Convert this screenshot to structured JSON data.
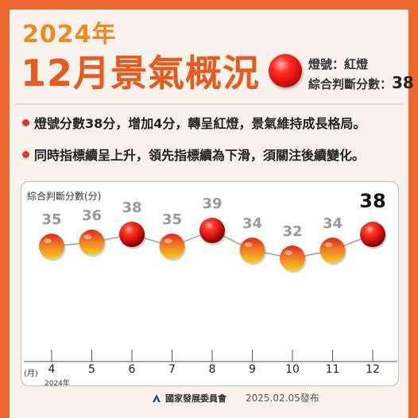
{
  "header": {
    "year": "2024年",
    "headline": "12月景氣概況",
    "signal_label": "燈號：紅燈",
    "score_label": "綜合判斷分數：",
    "score_value": "38"
  },
  "bullets": [
    "燈號分數38分，增加4分，轉呈紅燈，景氣維持成長格局。",
    "同時指標續呈上升，領先指標續為下滑，須關注後續變化。"
  ],
  "footer": {
    "org": "國家發展委員會",
    "date": "2025.02.05發布"
  },
  "colors": {
    "orange": "#ee6a2c",
    "red": "#e8352a",
    "yellow_red": "#f0a52a",
    "line": "#9e9e9e"
  },
  "chart_data": {
    "type": "line",
    "ylabel": "綜合判斷分數(分)",
    "xlabel": "(月)",
    "x_unit_label": "(月)",
    "year_note": "2024年",
    "categories": [
      "4",
      "5",
      "6",
      "7",
      "8",
      "9",
      "10",
      "11",
      "12"
    ],
    "values": [
      35,
      36,
      38,
      35,
      39,
      34,
      32,
      34,
      38
    ],
    "signals": [
      "yellow-red",
      "yellow-red",
      "red",
      "yellow-red",
      "red",
      "yellow-red",
      "yellow-red",
      "yellow-red",
      "red"
    ],
    "ylim": [
      28,
      42
    ],
    "grid": false,
    "highlight_last": true
  }
}
